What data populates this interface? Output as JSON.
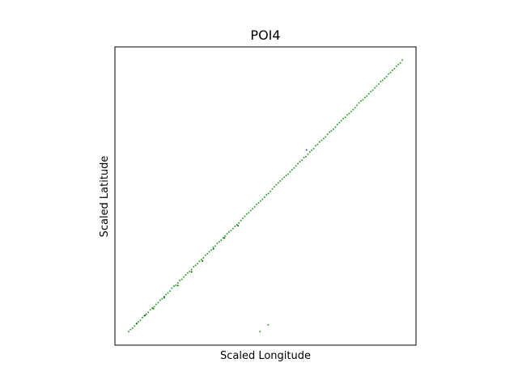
{
  "chart_data": {
    "type": "scatter",
    "title": "POI4",
    "xlabel": "Scaled Longitude",
    "ylabel": "Scaled Latitude",
    "xlim": [
      -0.05,
      1.05
    ],
    "ylim": [
      -0.05,
      1.05
    ],
    "grid": false,
    "ticks_visible": false,
    "legend": "none",
    "colors": {
      "green": "#2ca02c",
      "dark_green": "#006400",
      "blue": "#1f4fd6"
    },
    "series": [
      {
        "color": "green",
        "line": {
          "from": [
            0.0,
            0.0
          ],
          "to": [
            1.0,
            1.0
          ],
          "count": 140,
          "jitter": 0.002
        },
        "points": [
          [
            0.48,
            0.0
          ],
          [
            0.51,
            0.025
          ]
        ]
      },
      {
        "color": "dark_green",
        "points": [
          [
            0.03,
            0.03
          ],
          [
            0.06,
            0.06
          ],
          [
            0.09,
            0.085
          ],
          [
            0.13,
            0.125
          ],
          [
            0.18,
            0.17
          ],
          [
            0.23,
            0.22
          ],
          [
            0.27,
            0.26
          ],
          [
            0.31,
            0.305
          ],
          [
            0.35,
            0.345
          ],
          [
            0.4,
            0.39
          ]
        ]
      },
      {
        "color": "blue",
        "points": [
          [
            0.65,
            0.67
          ]
        ]
      }
    ]
  }
}
